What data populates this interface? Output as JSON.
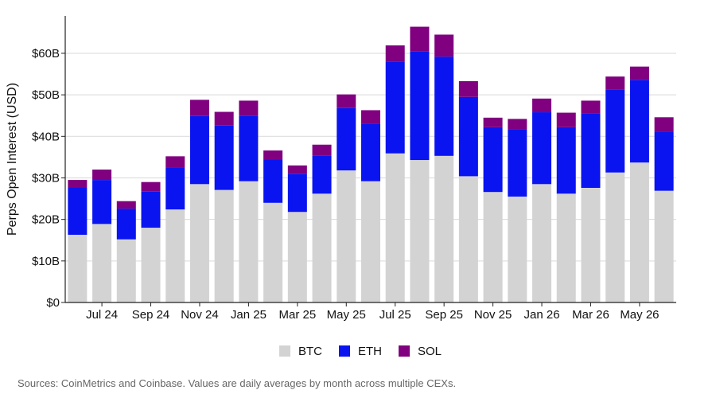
{
  "chart_data": {
    "type": "bar",
    "stacked": true,
    "categories": [
      "Jun 24",
      "Jul 24",
      "Aug 24",
      "Sep 24",
      "Oct 24",
      "Nov 24",
      "Dec 24",
      "Jan 25",
      "Feb 25",
      "Mar 25",
      "Apr 25",
      "May 25",
      "Jun 25",
      "Jul 25",
      "Aug 25",
      "Sep 25",
      "Oct 25",
      "Nov 25",
      "Dec 25",
      "Jan 26",
      "Feb 26",
      "Mar 26",
      "Apr 26",
      "May 26",
      "Jun 26"
    ],
    "x_tick_labels": [
      {
        "index": 1,
        "label": "Jul 24"
      },
      {
        "index": 3,
        "label": "Sep 24"
      },
      {
        "index": 5,
        "label": "Nov 24"
      },
      {
        "index": 7,
        "label": "Jan 25"
      },
      {
        "index": 9,
        "label": "Mar 25"
      },
      {
        "index": 11,
        "label": "May 25"
      },
      {
        "index": 13,
        "label": "Jul 25"
      },
      {
        "index": 15,
        "label": "Sep 25"
      },
      {
        "index": 17,
        "label": "Nov 25"
      },
      {
        "index": 19,
        "label": "Jan 26"
      },
      {
        "index": 21,
        "label": "Mar 26"
      },
      {
        "index": 23,
        "label": "May 26"
      }
    ],
    "series": [
      {
        "name": "BTC",
        "color": "#d3d3d3",
        "values": [
          16.3,
          18.9,
          15.2,
          18.0,
          22.4,
          28.5,
          27.1,
          29.2,
          24.0,
          21.8,
          26.2,
          31.8,
          29.2,
          35.9,
          34.3,
          35.3,
          30.4,
          26.6,
          25.5,
          28.5,
          26.2,
          27.6,
          31.3,
          33.7,
          26.9
        ]
      },
      {
        "name": "ETH",
        "color": "#0a14f0",
        "values": [
          11.4,
          10.6,
          7.4,
          8.7,
          10.1,
          16.4,
          15.5,
          15.8,
          10.4,
          9.2,
          9.2,
          15.0,
          13.9,
          22.0,
          26.1,
          23.9,
          19.1,
          15.6,
          16.1,
          17.3,
          16.0,
          17.9,
          20.0,
          19.9,
          14.2
        ]
      },
      {
        "name": "SOL",
        "color": "#800080",
        "values": [
          1.8,
          2.5,
          1.8,
          2.3,
          2.7,
          3.9,
          3.3,
          3.6,
          2.2,
          2.0,
          2.6,
          3.3,
          3.2,
          4.0,
          6.0,
          5.3,
          3.8,
          2.3,
          2.6,
          3.3,
          3.5,
          3.1,
          3.1,
          3.2,
          3.5
        ]
      }
    ],
    "y_ticks": [
      {
        "value": 0,
        "label": "$0"
      },
      {
        "value": 10,
        "label": "$10B"
      },
      {
        "value": 20,
        "label": "$20B"
      },
      {
        "value": 30,
        "label": "$30B"
      },
      {
        "value": 40,
        "label": "$40B"
      },
      {
        "value": 50,
        "label": "$50B"
      },
      {
        "value": 60,
        "label": "$60B"
      }
    ],
    "ylim": [
      0,
      69
    ],
    "ylabel": "Perps Open Interest (USD)",
    "xlabel": "",
    "title": "",
    "grid": true,
    "legend_position": "bottom-center"
  },
  "footer": {
    "source": "Sources: CoinMetrics and Coinbase. Values are daily averages by month across multiple CEXs."
  },
  "colors": {
    "grid": "#d9d9d9",
    "axis": "#222222",
    "text": "#111111",
    "footer_text": "#666666"
  }
}
